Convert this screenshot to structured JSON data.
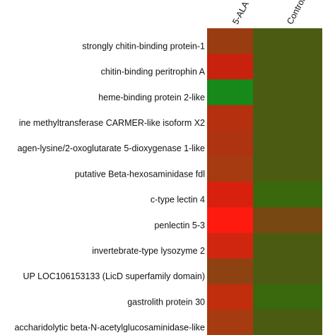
{
  "chart_data": {
    "type": "heatmap",
    "columns": [
      "5-ALA",
      "Control"
    ],
    "rows": [
      "strongly chitin-binding protein-1",
      "chitin-binding peritrophin A",
      "heme-binding protein 2-like",
      "ine methyltransferase CARMER-like isoform X2",
      "agen-lysine/2-oxoglutarate 5-dioxygenase 1-like",
      "putative Beta-hexosaminidase fdl",
      "c-type lectin 4",
      "penlectin 5-3",
      "invertebrate-type lysozyme 2",
      "UP LOC106153133 (LicD superfamily domain)",
      "gastrolith protein 30",
      "accharidolytic beta-N-acetylglucosaminidase-like"
    ],
    "colors": [
      [
        "#9a3c12",
        "#4b5c12"
      ],
      [
        "#c8220e",
        "#4b5c12"
      ],
      [
        "#17891a",
        "#4b5c12"
      ],
      [
        "#b4300f",
        "#4b5c12"
      ],
      [
        "#ae3310",
        "#4b5c12"
      ],
      [
        "#a63a10",
        "#4b5c12"
      ],
      [
        "#d8200f",
        "#3a680c"
      ],
      [
        "#ff1a10",
        "#784812"
      ],
      [
        "#d0260f",
        "#4b5c12"
      ],
      [
        "#8e4212",
        "#4b5c12"
      ],
      [
        "#c02e0e",
        "#3a680c"
      ],
      [
        "#a63a10",
        "#4b5c12"
      ]
    ]
  }
}
